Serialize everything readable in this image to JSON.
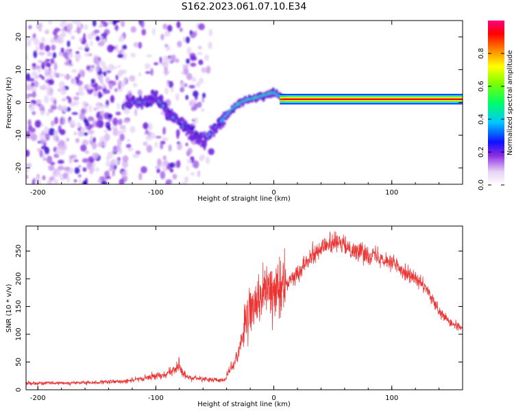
{
  "title": "S162.2023.061.07.10.E34",
  "chart_data": [
    {
      "type": "heatmap",
      "xlabel": "Height of straight line (km)",
      "ylabel": "Frequency (Hz)",
      "xlim": [
        -210,
        160
      ],
      "ylim": [
        -25,
        25
      ],
      "xticks": [
        -200,
        -100,
        0,
        100
      ],
      "yticks": [
        -20,
        -10,
        0,
        10,
        20
      ],
      "grid": false,
      "colorbar": {
        "label": "Normalized spectral amplitude",
        "range": [
          0,
          1
        ],
        "ticks": [
          "0.0",
          "0.2",
          "0.4",
          "0.6",
          "0.8"
        ],
        "colormap": "rainbow-white-to-magenta"
      },
      "ridge": {
        "x": [
          -110,
          -100,
          -90,
          -80,
          -70,
          -60,
          -55,
          -50,
          -45,
          -40,
          -35,
          -30,
          -25,
          -20,
          -15,
          -10,
          -5,
          0,
          5,
          10,
          20,
          40,
          60,
          80,
          100,
          120,
          140,
          160
        ],
        "y": [
          0,
          2,
          -3,
          -6,
          -9,
          -12,
          -10,
          -8,
          -6,
          -4,
          -2,
          -0.5,
          0.5,
          1,
          1.5,
          2,
          2.5,
          3,
          2,
          1,
          1,
          1,
          1,
          1,
          1,
          1,
          1,
          1
        ]
      }
    },
    {
      "type": "line",
      "xlabel": "Height of straight line (km)",
      "ylabel": "SNR (10 * v/v)",
      "xlim": [
        -210,
        160
      ],
      "ylim": [
        0,
        295
      ],
      "xticks": [
        -200,
        -100,
        0,
        100
      ],
      "yticks": [
        0,
        50,
        100,
        150,
        200,
        250
      ],
      "grid": false,
      "color": "#ee3333",
      "envelope": {
        "x": [
          -210,
          -180,
          -150,
          -130,
          -110,
          -100,
          -90,
          -85,
          -80,
          -78,
          -75,
          -70,
          -60,
          -55,
          -50,
          -45,
          -40,
          -35,
          -30,
          -25,
          -20,
          -15,
          -10,
          -5,
          0,
          10,
          20,
          30,
          40,
          50,
          60,
          70,
          80,
          90,
          100,
          110,
          120,
          130,
          135,
          140,
          145,
          150,
          155,
          160
        ],
        "y": [
          12,
          12,
          13,
          15,
          20,
          25,
          30,
          35,
          45,
          30,
          25,
          22,
          20,
          18,
          18,
          15,
          20,
          40,
          70,
          110,
          140,
          160,
          170,
          180,
          175,
          190,
          210,
          240,
          255,
          265,
          260,
          250,
          245,
          240,
          230,
          215,
          200,
          180,
          160,
          140,
          130,
          120,
          115,
          110
        ]
      }
    }
  ]
}
